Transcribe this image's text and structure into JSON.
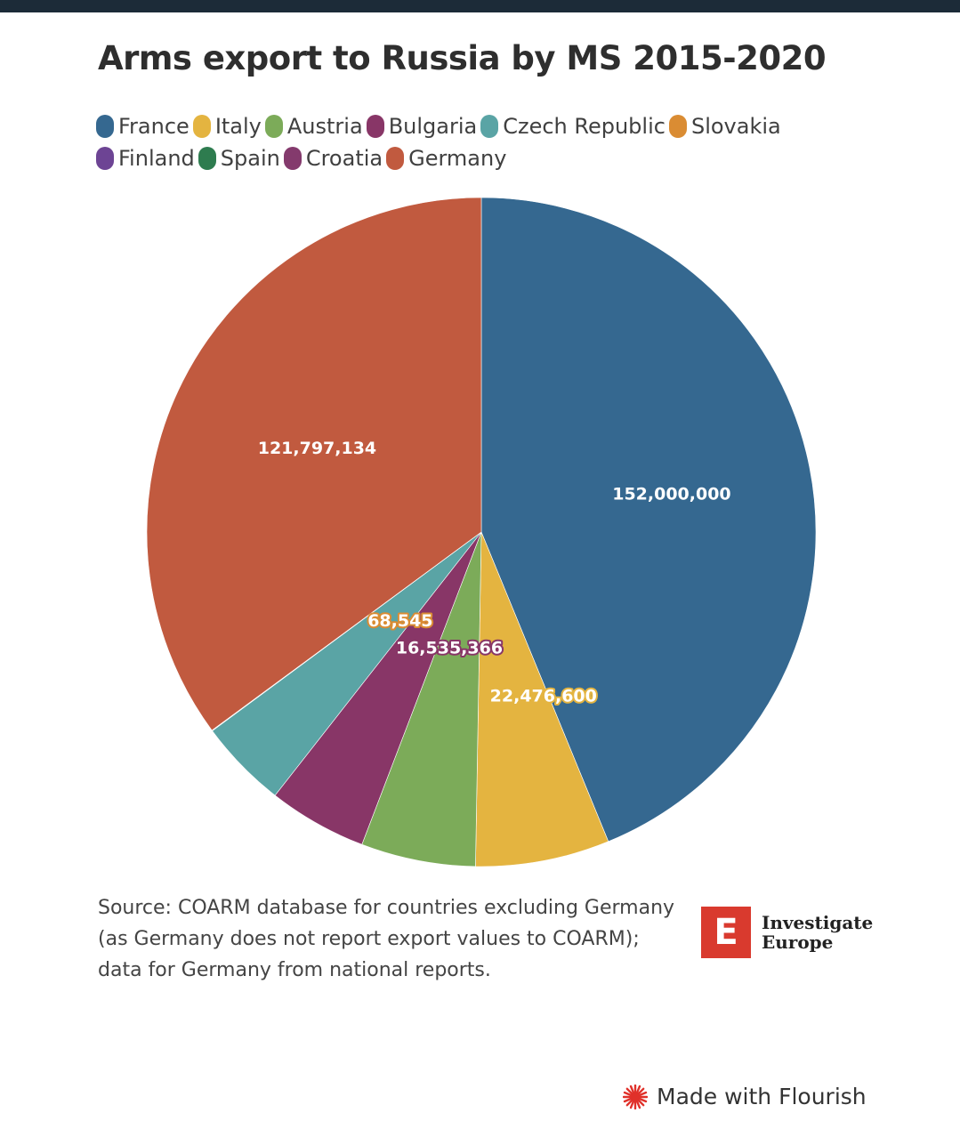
{
  "title": "Arms export to Russia by MS 2015-2020",
  "chart_data": {
    "type": "pie",
    "title": "Arms export to Russia by MS 2015-2020",
    "legend_position": "top-left",
    "slices": [
      {
        "name": "France",
        "value": 152000000,
        "color": "#356890",
        "label": "152,000,000"
      },
      {
        "name": "Italy",
        "value": 22476600,
        "color": "#e4b440",
        "label": "22,476,600"
      },
      {
        "name": "Austria",
        "value": 19200000,
        "color": "#7cab59"
      },
      {
        "name": "Bulgaria",
        "value": 16535366,
        "color": "#883667",
        "label": "16,535,366"
      },
      {
        "name": "Czech Republic",
        "value": 14900000,
        "color": "#5aa4a5"
      },
      {
        "name": "Slovakia",
        "value": 68545,
        "color": "#da8c33",
        "label": "68,545"
      },
      {
        "name": "Finland",
        "value": 20000,
        "color": "#6d4494"
      },
      {
        "name": "Spain",
        "value": 15000,
        "color": "#2e7c4f"
      },
      {
        "name": "Croatia",
        "value": 10000,
        "color": "#843a6d"
      },
      {
        "name": "Germany",
        "value": 121797134,
        "color": "#c15a3f",
        "label": "121,797,134"
      }
    ]
  },
  "legend": {
    "row1": [
      {
        "label": "France",
        "color": "#356890"
      },
      {
        "label": "Italy",
        "color": "#e4b440"
      },
      {
        "label": "Austria",
        "color": "#7cab59"
      },
      {
        "label": "Bulgaria",
        "color": "#883667"
      },
      {
        "label": "Czech Republic",
        "color": "#5aa4a5"
      },
      {
        "label": "Slovakia",
        "color": "#da8c33"
      }
    ],
    "row2": [
      {
        "label": "Finland",
        "color": "#6d4494"
      },
      {
        "label": "Spain",
        "color": "#2e7c4f"
      },
      {
        "label": "Croatia",
        "color": "#843a6d"
      },
      {
        "label": "Germany",
        "color": "#c15a3f"
      }
    ]
  },
  "source": {
    "line1": "Source: COARM database for countries excluding Germany",
    "line2": "(as Germany does not report export values to COARM);",
    "line3": "data for Germany from national reports."
  },
  "logo": {
    "letter": "E",
    "line1": "Investigate",
    "line2": "Europe"
  },
  "footer": {
    "flourish_label": "Made with Flourish",
    "icon": "flourish-burst-icon",
    "icon_color": "#e0312a"
  }
}
